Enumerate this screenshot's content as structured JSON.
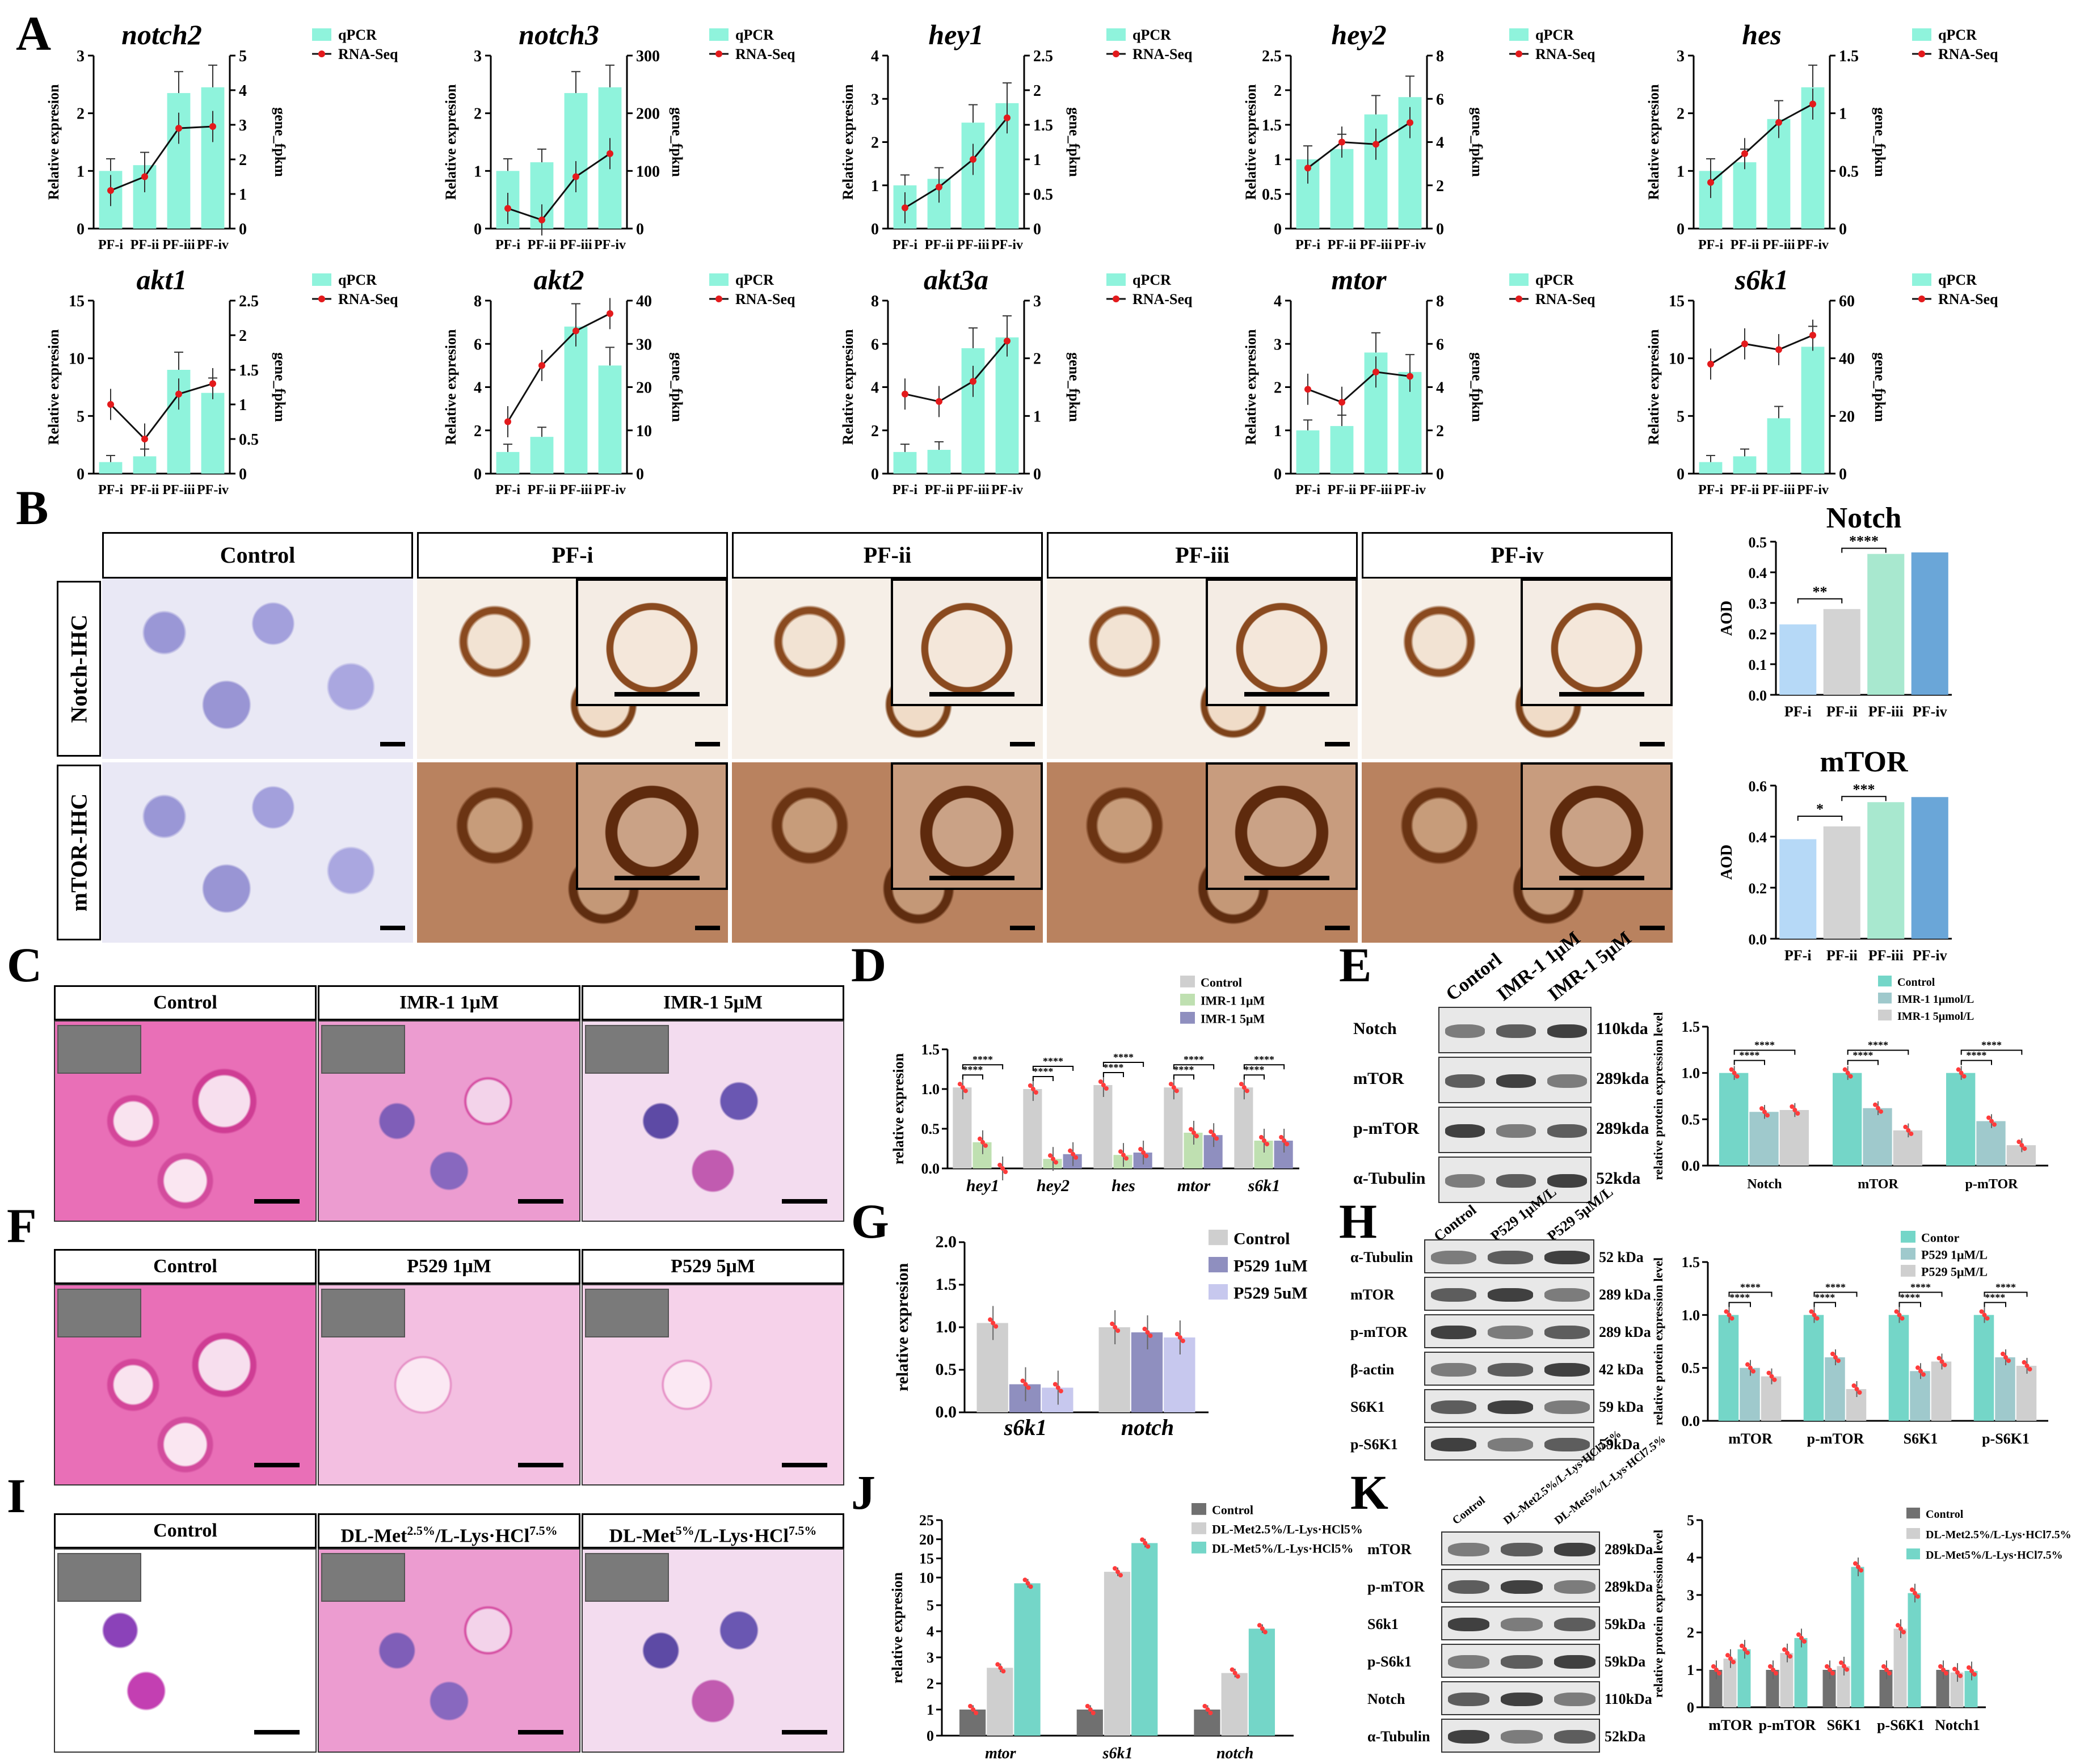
{
  "panels": {
    "A": "A",
    "B": "B",
    "C": "C",
    "D": "D",
    "E": "E",
    "F": "F",
    "G": "G",
    "H": "H",
    "I": "I",
    "J": "J",
    "K": "K"
  },
  "colors": {
    "qpcr": "#8ff3dc",
    "rnaseq": "#e31a1c",
    "bar_teal": "#74d6c8",
    "gray": "#cfcfcf",
    "dark": "#707070",
    "pf1": "#b6d9f7",
    "pf2": "#d3d3d3",
    "pf3": "#a8e8cf",
    "pf4": "#6aa6d8",
    "green": "#bfe0b1",
    "lav": "#c7c8ee",
    "purple": "#8f8fbf",
    "dots": "#ff3b3b"
  },
  "A_common": {
    "x_labels": [
      "PF-i",
      "PF-ii",
      "PF-iii",
      "PF-iv"
    ],
    "ylabel": "Relative expresion",
    "y2label": "gene_fpkm",
    "legend": [
      "qPCR",
      "RNA-Seq"
    ]
  },
  "chart_data": [
    {
      "panel": "A",
      "type": "bar",
      "title": "notch2",
      "categories": [
        "PF-i",
        "PF-ii",
        "PF-iii",
        "PF-iv"
      ],
      "series": [
        {
          "name": "qPCR",
          "values": [
            1.0,
            1.1,
            2.35,
            2.45
          ]
        },
        {
          "name": "RNA-Seq",
          "values": [
            1.1,
            1.5,
            2.9,
            2.95
          ]
        }
      ],
      "ylim": [
        0,
        3
      ],
      "yticks": [
        0,
        1,
        2,
        3
      ],
      "y2lim": [
        0,
        5
      ],
      "y2ticks": [
        0,
        1,
        2,
        3,
        4,
        5
      ],
      "ylabel": "Relative expresion",
      "y2label": "gene_fpkm"
    },
    {
      "panel": "A",
      "type": "bar",
      "title": "notch3",
      "categories": [
        "PF-i",
        "PF-ii",
        "PF-iii",
        "PF-iv"
      ],
      "series": [
        {
          "name": "qPCR",
          "values": [
            1.0,
            1.15,
            2.35,
            2.45
          ]
        },
        {
          "name": "RNA-Seq",
          "values": [
            35,
            15,
            90,
            130
          ]
        }
      ],
      "ylim": [
        0,
        3
      ],
      "yticks": [
        0,
        1,
        2,
        3
      ],
      "y2lim": [
        0,
        300
      ],
      "y2ticks": [
        0,
        100,
        200,
        300
      ],
      "ylabel": "Relative expresion",
      "y2label": "gene_fpkm"
    },
    {
      "panel": "A",
      "type": "bar",
      "title": "hey1",
      "categories": [
        "PF-i",
        "PF-ii",
        "PF-iii",
        "PF-iv"
      ],
      "series": [
        {
          "name": "qPCR",
          "values": [
            1.0,
            1.15,
            2.45,
            2.9
          ]
        },
        {
          "name": "RNA-Seq",
          "values": [
            0.3,
            0.6,
            1.0,
            1.6
          ]
        }
      ],
      "ylim": [
        0,
        4
      ],
      "yticks": [
        0,
        1,
        2,
        3,
        4
      ],
      "y2lim": [
        0,
        2.5
      ],
      "y2ticks": [
        0,
        0.5,
        1.0,
        1.5,
        2.0,
        2.5
      ],
      "ylabel": "Relative expresion",
      "y2label": "gene_fpkm"
    },
    {
      "panel": "A",
      "type": "bar",
      "title": "hey2",
      "categories": [
        "PF-i",
        "PF-ii",
        "PF-iii",
        "PF-iv"
      ],
      "series": [
        {
          "name": "qPCR",
          "values": [
            1.0,
            1.15,
            1.65,
            1.9
          ]
        },
        {
          "name": "RNA-Seq",
          "values": [
            2.8,
            4.0,
            3.9,
            4.9
          ]
        }
      ],
      "ylim": [
        0,
        2.5
      ],
      "yticks": [
        0,
        0.5,
        1.0,
        1.5,
        2.0,
        2.5
      ],
      "y2lim": [
        0,
        8
      ],
      "y2ticks": [
        0,
        2,
        4,
        6,
        8
      ],
      "ylabel": "Relative expresion",
      "y2label": "gene_fpkm"
    },
    {
      "panel": "A",
      "type": "bar",
      "title": "hes",
      "categories": [
        "PF-i",
        "PF-ii",
        "PF-iii",
        "PF-iv"
      ],
      "series": [
        {
          "name": "qPCR",
          "values": [
            1.0,
            1.15,
            1.9,
            2.45
          ]
        },
        {
          "name": "RNA-Seq",
          "values": [
            0.4,
            0.65,
            0.92,
            1.08
          ]
        }
      ],
      "ylim": [
        0,
        3
      ],
      "yticks": [
        0,
        1,
        2,
        3
      ],
      "y2lim": [
        0,
        1.5
      ],
      "y2ticks": [
        0,
        0.5,
        1.0,
        1.5
      ],
      "ylabel": "Relative expresion",
      "y2label": "gene_fpkm"
    },
    {
      "panel": "A",
      "type": "bar",
      "title": "akt1",
      "categories": [
        "PF-i",
        "PF-ii",
        "PF-iii",
        "PF-iv"
      ],
      "series": [
        {
          "name": "qPCR",
          "values": [
            1.0,
            1.5,
            9.0,
            7.0
          ]
        },
        {
          "name": "RNA-Seq",
          "values": [
            1.0,
            0.5,
            1.15,
            1.3
          ]
        }
      ],
      "ylim": [
        0,
        15
      ],
      "yticks": [
        0,
        5,
        10,
        15
      ],
      "y2lim": [
        0,
        2.5
      ],
      "y2ticks": [
        0,
        0.5,
        1.0,
        1.5,
        2.0,
        2.5
      ],
      "ylabel": "Relative expresion",
      "y2label": "gene_fpkm"
    },
    {
      "panel": "A",
      "type": "bar",
      "title": "akt2",
      "categories": [
        "PF-i",
        "PF-ii",
        "PF-iii",
        "PF-iv"
      ],
      "series": [
        {
          "name": "qPCR",
          "values": [
            1.0,
            1.7,
            6.8,
            5.0
          ]
        },
        {
          "name": "RNA-Seq",
          "values": [
            12,
            25,
            33,
            37
          ]
        }
      ],
      "ylim": [
        0,
        8
      ],
      "yticks": [
        0,
        2,
        4,
        6,
        8
      ],
      "y2lim": [
        0,
        40
      ],
      "y2ticks": [
        0,
        10,
        20,
        30,
        40
      ],
      "ylabel": "Relative expresion",
      "y2label": "gene_fpkm"
    },
    {
      "panel": "A",
      "type": "bar",
      "title": "akt3a",
      "categories": [
        "PF-i",
        "PF-ii",
        "PF-iii",
        "PF-iv"
      ],
      "series": [
        {
          "name": "qPCR",
          "values": [
            1.0,
            1.1,
            5.8,
            6.3
          ]
        },
        {
          "name": "RNA-Seq",
          "values": [
            1.38,
            1.25,
            1.6,
            2.3
          ]
        }
      ],
      "ylim": [
        0,
        8
      ],
      "yticks": [
        0,
        2,
        4,
        6,
        8
      ],
      "y2lim": [
        0,
        3
      ],
      "y2ticks": [
        0,
        1,
        2,
        3
      ],
      "ylabel": "Relative expresion",
      "y2label": "gene_fpkm"
    },
    {
      "panel": "A",
      "type": "bar",
      "title": "mtor",
      "categories": [
        "PF-i",
        "PF-ii",
        "PF-iii",
        "PF-iv"
      ],
      "series": [
        {
          "name": "qPCR",
          "values": [
            1.0,
            1.1,
            2.8,
            2.35
          ]
        },
        {
          "name": "RNA-Seq",
          "values": [
            3.9,
            3.3,
            4.7,
            4.5
          ]
        }
      ],
      "ylim": [
        0,
        4
      ],
      "yticks": [
        0,
        1,
        2,
        3,
        4
      ],
      "y2lim": [
        0,
        8
      ],
      "y2ticks": [
        0,
        2,
        4,
        6,
        8
      ],
      "ylabel": "Relative expresion",
      "y2label": "gene_fpkm"
    },
    {
      "panel": "A",
      "type": "bar",
      "title": "s6k1",
      "categories": [
        "PF-i",
        "PF-ii",
        "PF-iii",
        "PF-iv"
      ],
      "series": [
        {
          "name": "qPCR",
          "values": [
            1.0,
            1.5,
            4.8,
            11.0
          ]
        },
        {
          "name": "RNA-Seq",
          "values": [
            38,
            45,
            43,
            48
          ]
        }
      ],
      "ylim": [
        0,
        15
      ],
      "yticks": [
        0,
        5,
        10,
        15
      ],
      "y2lim": [
        0,
        60
      ],
      "y2ticks": [
        0,
        20,
        40,
        60
      ],
      "ylabel": "Relative expresion",
      "y2label": "gene_fpkm"
    },
    {
      "panel": "B",
      "type": "bar",
      "title": "Notch",
      "categories": [
        "PF-i",
        "PF-ii",
        "PF-iii",
        "PF-iv"
      ],
      "values": [
        0.23,
        0.28,
        0.46,
        0.465
      ],
      "ylim": [
        0,
        0.5
      ],
      "yticks": [
        0.0,
        0.1,
        0.2,
        0.3,
        0.4,
        0.5
      ],
      "ylabel": "AOD",
      "sig": [
        "**",
        "****"
      ]
    },
    {
      "panel": "B",
      "type": "bar",
      "title": "mTOR",
      "categories": [
        "PF-i",
        "PF-ii",
        "PF-iii",
        "PF-iv"
      ],
      "values": [
        0.39,
        0.44,
        0.535,
        0.555
      ],
      "ylim": [
        0,
        0.6
      ],
      "yticks": [
        0.0,
        0.2,
        0.4,
        0.6
      ],
      "ylabel": "AOD",
      "sig": [
        "*",
        "***"
      ]
    },
    {
      "panel": "D",
      "type": "bar",
      "categories": [
        "hey1",
        "hey2",
        "hes",
        "mtor",
        "s6k1"
      ],
      "series": [
        {
          "name": "Control",
          "values": [
            1.02,
            1.0,
            1.05,
            1.02,
            1.02
          ]
        },
        {
          "name": "IMR-1 1μM",
          "values": [
            0.33,
            0.12,
            0.17,
            0.45,
            0.35
          ]
        },
        {
          "name": "IMR-1 5μM",
          "values": [
            0.0,
            0.18,
            0.2,
            0.42,
            0.35
          ]
        }
      ],
      "ylim": [
        0,
        1.5
      ],
      "yticks": [
        0.0,
        0.5,
        1.0,
        1.5
      ],
      "ylabel": "relative expresion"
    },
    {
      "panel": "E",
      "type": "bar",
      "categories": [
        "Notch",
        "mTOR",
        "p-mTOR"
      ],
      "series": [
        {
          "name": "Control",
          "values": [
            1.0,
            1.0,
            1.0
          ]
        },
        {
          "name": "IMR-1 1μmol/L",
          "values": [
            0.58,
            0.62,
            0.48
          ]
        },
        {
          "name": "IMR-1 5μmol/L",
          "values": [
            0.6,
            0.38,
            0.22
          ]
        }
      ],
      "ylim": [
        0,
        1.5
      ],
      "yticks": [
        0.0,
        0.5,
        1.0,
        1.5
      ],
      "ylabel": "relative protein expression level"
    },
    {
      "panel": "G",
      "type": "bar",
      "categories": [
        "s6k1",
        "notch"
      ],
      "series": [
        {
          "name": "Control",
          "values": [
            1.05,
            1.0
          ]
        },
        {
          "name": "P529 1uM",
          "values": [
            0.33,
            0.94
          ]
        },
        {
          "name": "P529 5uM",
          "values": [
            0.29,
            0.88
          ]
        }
      ],
      "ylim": [
        0,
        2.0
      ],
      "yticks": [
        0.0,
        0.5,
        1.0,
        1.5,
        2.0
      ],
      "ylabel": "relative expresion"
    },
    {
      "panel": "H",
      "type": "bar",
      "categories": [
        "mTOR",
        "p-mTOR",
        "S6K1",
        "p-S6K1"
      ],
      "series": [
        {
          "name": "Contor",
          "values": [
            1.0,
            1.0,
            1.0,
            1.0
          ]
        },
        {
          "name": "P529 1μM/L",
          "values": [
            0.5,
            0.6,
            0.47,
            0.6
          ]
        },
        {
          "name": "P529 5μM/L",
          "values": [
            0.42,
            0.3,
            0.56,
            0.52
          ]
        }
      ],
      "ylim": [
        0,
        1.5
      ],
      "yticks": [
        0.0,
        0.5,
        1.0,
        1.5
      ],
      "ylabel": "relative protein expression level"
    },
    {
      "panel": "J",
      "type": "bar",
      "categories": [
        "mtor",
        "s6k1",
        "notch"
      ],
      "series": [
        {
          "name": "Control",
          "values": [
            1.0,
            1.0,
            1.0
          ]
        },
        {
          "name": "DL-Met2.5%/L-Lys·HCl5%",
          "values": [
            2.6,
            11.5,
            2.4
          ]
        },
        {
          "name": "DL-Met5%/L-Lys·HCl5%",
          "values": [
            8.5,
            19.0,
            4.1
          ]
        }
      ],
      "yticks": [
        0,
        1,
        2,
        3,
        4,
        5,
        10,
        15,
        20,
        25
      ],
      "ylabel": "relative expresion",
      "broken_axis": true
    },
    {
      "panel": "K",
      "type": "bar",
      "categories": [
        "mTOR",
        "p-mTOR",
        "S6K1",
        "p-S6K1",
        "Notch1"
      ],
      "series": [
        {
          "name": "Control",
          "values": [
            1.0,
            1.0,
            1.0,
            1.0,
            1.0
          ]
        },
        {
          "name": "DL-Met2.5%/L-Lys·HCl7.5%",
          "values": [
            1.3,
            1.45,
            1.1,
            2.1,
            0.93
          ]
        },
        {
          "name": "DL-Met5%/L-Lys·HCl7.5%",
          "values": [
            1.55,
            1.85,
            3.75,
            3.05,
            0.97
          ]
        }
      ],
      "ylim": [
        0,
        5
      ],
      "yticks": [
        0,
        1,
        2,
        3,
        4,
        5
      ],
      "ylabel": "relative protein expression level"
    }
  ],
  "B_grid": {
    "columns": [
      "Control",
      "PF-i",
      "PF-ii",
      "PF-iii",
      "PF-iv"
    ],
    "rows": [
      "Notch-IHC",
      "mTOR-IHC"
    ]
  },
  "C_hist": {
    "headers": [
      "Control",
      "IMR-1 1μM",
      "IMR-1 5μM"
    ]
  },
  "F_hist": {
    "headers": [
      "Control",
      "P529 1μM",
      "P529 5μM"
    ]
  },
  "I_hist": {
    "headers": [
      "Control",
      "DL-Met",
      "2.5%",
      "/L-Lys·HCl",
      "7.5%",
      "DL-Met",
      "5%",
      "/L-Lys·HCl",
      "7.5%"
    ]
  },
  "E_blot": {
    "columns": [
      "Contorl",
      "IMR-1 1μM",
      "IMR-1 5μM"
    ],
    "rows": [
      {
        "label": "Notch",
        "kda": "110kda"
      },
      {
        "label": "mTOR",
        "kda": "289kda"
      },
      {
        "label": "p-mTOR",
        "kda": "289kda"
      },
      {
        "label": "α-Tubulin",
        "kda": "52kda"
      }
    ]
  },
  "H_blot": {
    "columns": [
      "Control",
      "P529 1μM/L",
      "P529 5μM/L"
    ],
    "rows": [
      {
        "label": "α-Tubulin",
        "kda": "52 kDa"
      },
      {
        "label": "mTOR",
        "kda": "289 kDa"
      },
      {
        "label": "p-mTOR",
        "kda": "289 kDa"
      },
      {
        "label": "β-actin",
        "kda": "42 kDa"
      },
      {
        "label": "S6K1",
        "kda": "59 kDa"
      },
      {
        "label": "p-S6K1",
        "kda": "59kDa"
      }
    ]
  },
  "K_blot": {
    "columns": [
      "Control",
      "DL-Met2.5%/L-Lys·HCl7.5%",
      "DL-Met5%/L-Lys·HCl7.5%"
    ],
    "rows": [
      {
        "label": "mTOR",
        "kda": "289kDa"
      },
      {
        "label": "p-mTOR",
        "kda": "289kDa"
      },
      {
        "label": "S6k1",
        "kda": "59kDa"
      },
      {
        "label": "p-S6k1",
        "kda": "59kDa"
      },
      {
        "label": "Notch",
        "kda": "110kDa"
      },
      {
        "label": "α-Tubulin",
        "kda": "52kDa"
      }
    ]
  }
}
